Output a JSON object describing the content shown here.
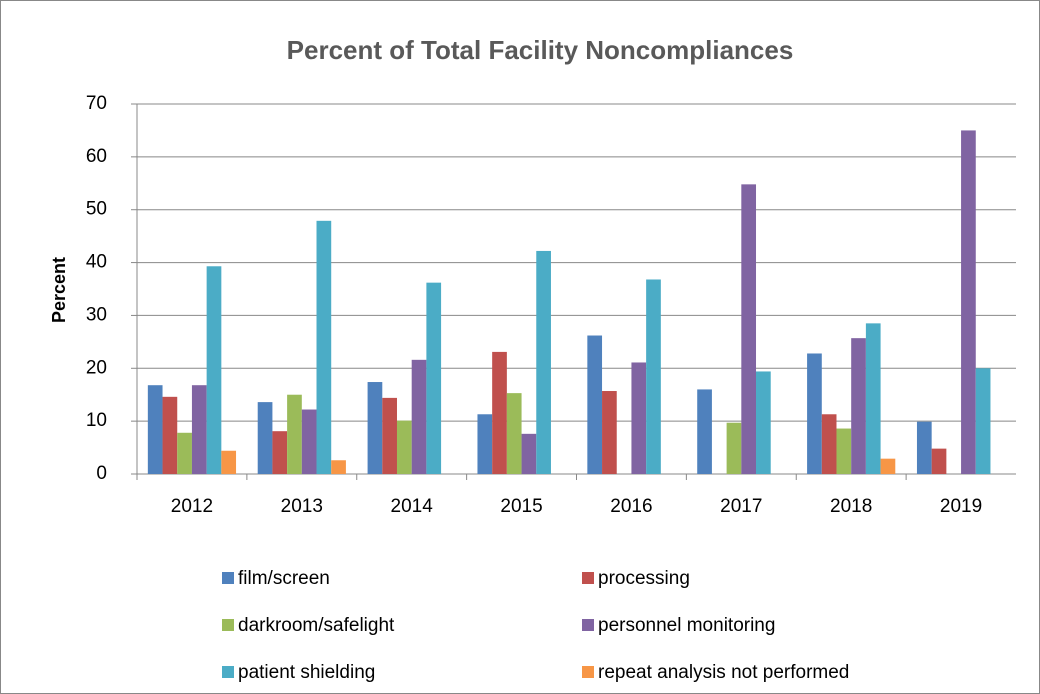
{
  "chart_data": {
    "type": "bar",
    "title": "Percent  of Total Facility Noncompliances",
    "y_label": "Percent",
    "categories": [
      "2012",
      "2013",
      "2014",
      "2015",
      "2016",
      "2017",
      "2018",
      "2019"
    ],
    "series": [
      {
        "name": "film/screen",
        "color": "#4f81bd",
        "values": [
          16.8,
          13.6,
          17.4,
          11.3,
          26.2,
          16,
          22.8,
          9.9
        ]
      },
      {
        "name": "processing",
        "color": "#c0504d",
        "values": [
          14.6,
          8.1,
          14.4,
          23.1,
          15.7,
          0,
          11.3,
          4.8
        ]
      },
      {
        "name": "darkroom/safelight",
        "color": "#9bbb59",
        "values": [
          7.8,
          15,
          10.1,
          15.3,
          0,
          9.7,
          8.6,
          0
        ]
      },
      {
        "name": "personnel monitoring",
        "color": "#8064a2",
        "values": [
          16.8,
          12.2,
          21.6,
          7.6,
          21.1,
          54.8,
          25.7,
          65
        ]
      },
      {
        "name": "patient shielding",
        "color": "#4bacc6",
        "values": [
          39.3,
          47.9,
          36.2,
          42.2,
          36.8,
          19.4,
          28.5,
          20
        ]
      },
      {
        "name": "repeat analysis not performed",
        "color": "#f79646",
        "values": [
          4.4,
          2.6,
          0,
          0,
          0,
          0,
          2.9,
          0
        ]
      }
    ],
    "ylim": [
      0,
      70
    ],
    "yticks": [
      0,
      10,
      20,
      30,
      40,
      50,
      60,
      70
    ],
    "grid": true,
    "legend": "bottom"
  }
}
